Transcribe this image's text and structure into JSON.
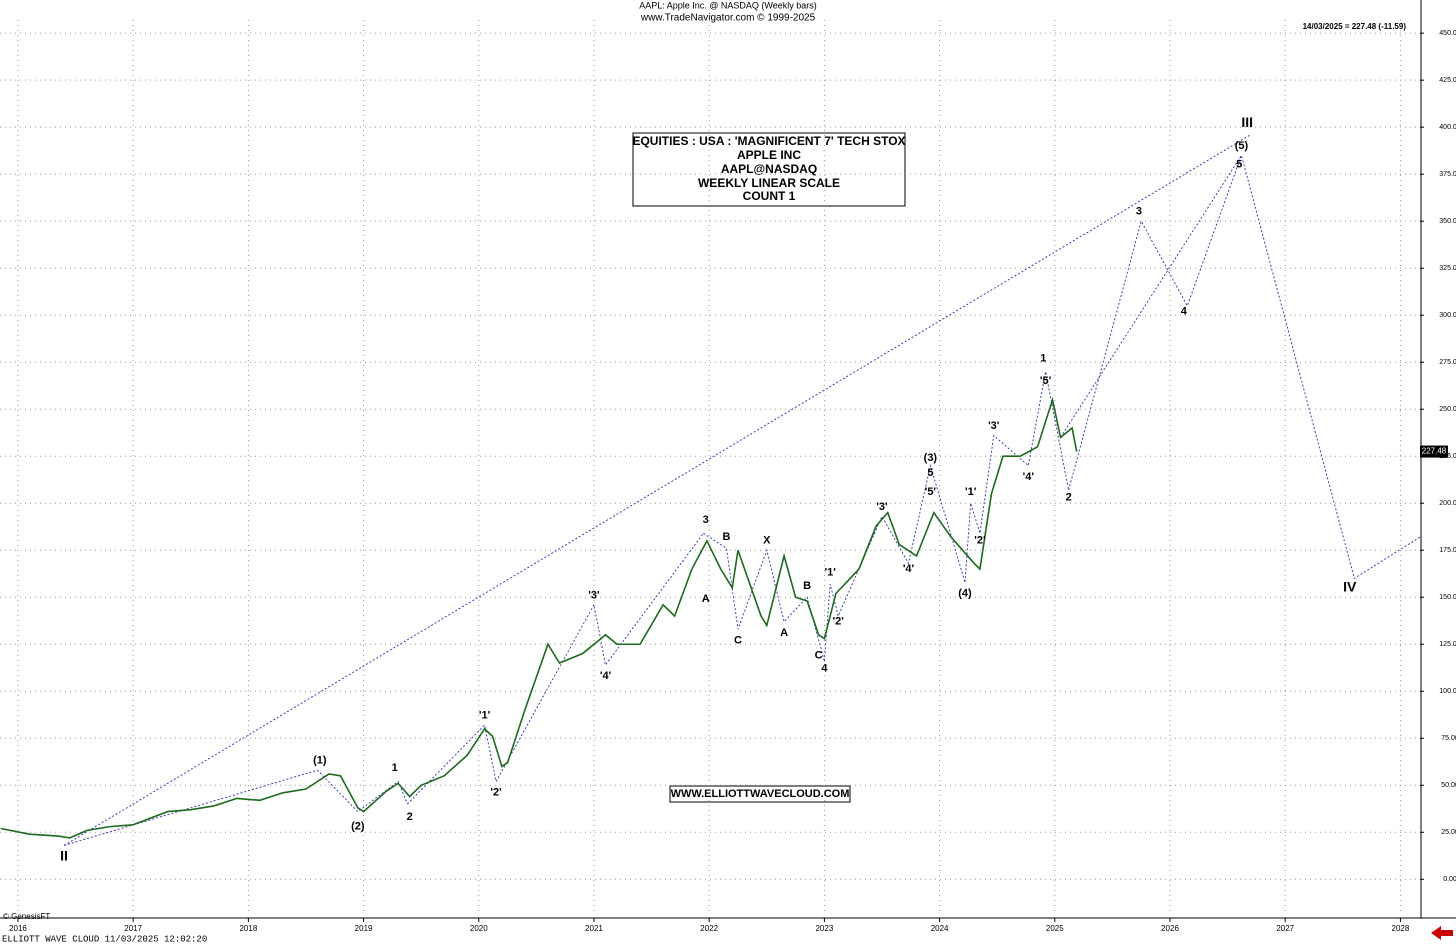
{
  "chart_data": {
    "type": "line",
    "title": "AAPL:  Apple Inc. @ NASDAQ  (Weekly bars)",
    "subtitle": "www.TradeNavigator.com © 1999-2025",
    "last_quote": "14/03/2025 = 227.48 (-11.59)",
    "last_price": 227.48,
    "info_box": [
      "EQUITIES : USA : 'MAGNIFICENT 7' TECH STOX",
      "APPLE INC",
      "AAPL@NASDAQ",
      "WEEKLY LINEAR SCALE",
      "COUNT 1"
    ],
    "website": "WWW.ELLIOTTWAVECLOUD.COM",
    "copyright": "© GenesisFT",
    "footer": "ELLIOTT WAVE CLOUD   11/03/2025 12:02:20",
    "xlim": [
      2015.844,
      2028.17
    ],
    "xticks": [
      2016,
      2017,
      2018,
      2019,
      2020,
      2021,
      2022,
      2023,
      2024,
      2025,
      2026,
      2027,
      2028
    ],
    "ylim": [
      -19,
      457
    ],
    "yticks": [
      {
        "value": 0,
        "label": "0.00"
      },
      {
        "value": 25,
        "label": "25.00"
      },
      {
        "value": 50,
        "label": "50.00"
      },
      {
        "value": 75,
        "label": "75.00"
      },
      {
        "value": 100,
        "label": "100.00"
      },
      {
        "value": 125,
        "label": "125.00"
      },
      {
        "value": 150,
        "label": "150.00"
      },
      {
        "value": 175,
        "label": "175.00"
      },
      {
        "value": 200,
        "label": "200.00"
      },
      {
        "value": 225,
        "label": "225.00"
      },
      {
        "value": 250,
        "label": "250.00"
      },
      {
        "value": 275,
        "label": "275.00"
      },
      {
        "value": 300,
        "label": "300.00"
      },
      {
        "value": 325,
        "label": "325.00"
      },
      {
        "value": 350,
        "label": "350.00"
      },
      {
        "value": 375,
        "label": "375.00"
      },
      {
        "value": 400,
        "label": "400.00"
      },
      {
        "value": 425,
        "label": "425.00"
      },
      {
        "value": 450,
        "label": "450.00"
      }
    ],
    "grid": true,
    "series": [
      {
        "name": "AAPL",
        "color": "#1a6b1a",
        "x": [
          2015.85,
          2016.1,
          2016.35,
          2016.45,
          2016.6,
          2016.8,
          2017.0,
          2017.3,
          2017.5,
          2017.7,
          2017.9,
          2018.1,
          2018.3,
          2018.5,
          2018.7,
          2018.8,
          2018.95,
          2019.0,
          2019.2,
          2019.3,
          2019.4,
          2019.5,
          2019.7,
          2019.9,
          2020.05,
          2020.12,
          2020.2,
          2020.25,
          2020.4,
          2020.6,
          2020.7,
          2020.9,
          2021.1,
          2021.2,
          2021.4,
          2021.6,
          2021.7,
          2021.85,
          2021.98,
          2022.1,
          2022.2,
          2022.25,
          2022.45,
          2022.5,
          2022.65,
          2022.75,
          2022.85,
          2022.95,
          2023.0,
          2023.1,
          2023.3,
          2023.45,
          2023.55,
          2023.65,
          2023.8,
          2023.95,
          2024.1,
          2024.3,
          2024.35,
          2024.45,
          2024.55,
          2024.7,
          2024.85,
          2024.98,
          2025.05,
          2025.15,
          2025.19
        ],
        "values": [
          27,
          24,
          23,
          22,
          26,
          28,
          29,
          36,
          37,
          39,
          43,
          42,
          46,
          48,
          56,
          55,
          38,
          36,
          47,
          51,
          44,
          50,
          55,
          66,
          80,
          76,
          60,
          62,
          90,
          125,
          115,
          120,
          130,
          125,
          125,
          146,
          140,
          165,
          180,
          165,
          155,
          175,
          140,
          135,
          172,
          150,
          148,
          130,
          128,
          152,
          165,
          188,
          195,
          178,
          172,
          195,
          182,
          168,
          165,
          205,
          225,
          225,
          230,
          255,
          235,
          240,
          227.48
        ]
      }
    ],
    "wave_lines": [
      {
        "x": [
          2016.4,
          2026.7
        ],
        "y": [
          18,
          396
        ]
      },
      {
        "x": [
          2016.4,
          2018.6,
          2018.95,
          2019.3,
          2019.38
        ],
        "y": [
          18,
          58,
          36,
          52,
          40
        ]
      },
      {
        "x": [
          2019.38,
          2020.05,
          2020.15,
          2021.0,
          2021.1,
          2021.95
        ],
        "y": [
          40,
          82,
          52,
          146,
          114,
          184
        ]
      },
      {
        "x": [
          2021.95,
          2022.15,
          2022.25,
          2022.5,
          2022.65,
          2022.85,
          2023.0
        ],
        "y": [
          184,
          176,
          133,
          175,
          137,
          150,
          116
        ]
      },
      {
        "x": [
          2023.0,
          2023.05,
          2023.12,
          2023.5,
          2023.73,
          2023.92,
          2024.22
        ],
        "y": [
          116,
          157,
          140,
          193,
          168,
          220,
          158
        ]
      },
      {
        "x": [
          2024.22,
          2024.27,
          2024.35,
          2024.47,
          2024.77,
          2024.92,
          2025.12
        ],
        "y": [
          158,
          200,
          184,
          236,
          220,
          270,
          207
        ]
      },
      {
        "x": [
          2025.12,
          2025.75,
          2026.15,
          2026.62,
          2027.6,
          2028.17
        ],
        "y": [
          207,
          350,
          305,
          385,
          160,
          182
        ]
      },
      {
        "x": [
          2025.05,
          2026.62
        ],
        "y": [
          235,
          385
        ]
      }
    ],
    "annotations": [
      {
        "text": "II",
        "x": 2016.4,
        "y": 12,
        "color": "#1a1aa6"
      },
      {
        "text": "(1)",
        "x": 2018.62,
        "y": 63,
        "color": "#1a1aa6"
      },
      {
        "text": "(2)",
        "x": 2018.95,
        "y": 28,
        "color": "#1a1aa6"
      },
      {
        "text": "1",
        "x": 2019.27,
        "y": 59,
        "color": "#1a1aa6"
      },
      {
        "text": "2",
        "x": 2019.4,
        "y": 33,
        "color": "#1a1aa6"
      },
      {
        "text": "'1'",
        "x": 2020.05,
        "y": 87,
        "color": "#1a1aa6"
      },
      {
        "text": "'2'",
        "x": 2020.15,
        "y": 46,
        "color": "#1a1aa6"
      },
      {
        "text": "'3'",
        "x": 2021.0,
        "y": 151,
        "color": "#1a1aa6"
      },
      {
        "text": "'4'",
        "x": 2021.1,
        "y": 108,
        "color": "#1a1aa6"
      },
      {
        "text": "3",
        "x": 2021.97,
        "y": 191,
        "color": "#1a1aa6"
      },
      {
        "text": "A",
        "x": 2021.97,
        "y": 149,
        "color": "#cc0000"
      },
      {
        "text": "B",
        "x": 2022.15,
        "y": 182,
        "color": "#cc0000"
      },
      {
        "text": "C",
        "x": 2022.25,
        "y": 127,
        "color": "#cc0000"
      },
      {
        "text": "X",
        "x": 2022.5,
        "y": 180,
        "color": "#cc0000"
      },
      {
        "text": "A",
        "x": 2022.65,
        "y": 131,
        "color": "#cc0000"
      },
      {
        "text": "B",
        "x": 2022.85,
        "y": 156,
        "color": "#cc0000"
      },
      {
        "text": "C",
        "x": 2022.95,
        "y": 119,
        "color": "#cc0000"
      },
      {
        "text": "4",
        "x": 2023.0,
        "y": 112,
        "color": "#1a1aa6"
      },
      {
        "text": "'1'",
        "x": 2023.05,
        "y": 163,
        "color": "#1a1aa6"
      },
      {
        "text": "'2'",
        "x": 2023.12,
        "y": 137,
        "color": "#1a1aa6"
      },
      {
        "text": "'3'",
        "x": 2023.5,
        "y": 198,
        "color": "#1a1aa6"
      },
      {
        "text": "'4'",
        "x": 2023.73,
        "y": 165,
        "color": "#1a1aa6"
      },
      {
        "text": "(3)",
        "x": 2023.92,
        "y": 224,
        "color": "#1a1aa6"
      },
      {
        "text": "5",
        "x": 2023.92,
        "y": 216,
        "color": "#1a1aa6"
      },
      {
        "text": "'5'",
        "x": 2023.92,
        "y": 206,
        "color": "#1a1aa6"
      },
      {
        "text": "(4)",
        "x": 2024.22,
        "y": 152,
        "color": "#1a1aa6"
      },
      {
        "text": "'1'",
        "x": 2024.27,
        "y": 206,
        "color": "#1a1aa6"
      },
      {
        "text": "'2'",
        "x": 2024.35,
        "y": 180,
        "color": "#1a1aa6"
      },
      {
        "text": "'3'",
        "x": 2024.47,
        "y": 241,
        "color": "#1a1aa6"
      },
      {
        "text": "'4'",
        "x": 2024.77,
        "y": 214,
        "color": "#1a1aa6"
      },
      {
        "text": "1",
        "x": 2024.9,
        "y": 277,
        "color": "#1a1aa6"
      },
      {
        "text": "'5'",
        "x": 2024.92,
        "y": 265,
        "color": "#1a1aa6"
      },
      {
        "text": "2",
        "x": 2025.12,
        "y": 203,
        "color": "#1a1aa6"
      },
      {
        "text": "3",
        "x": 2025.73,
        "y": 355,
        "color": "#1a1aa6"
      },
      {
        "text": "4",
        "x": 2026.12,
        "y": 302,
        "color": "#1a1aa6"
      },
      {
        "text": "5",
        "x": 2026.6,
        "y": 380,
        "color": "#1a1aa6"
      },
      {
        "text": "(5)",
        "x": 2026.62,
        "y": 390,
        "color": "#1a1aa6"
      },
      {
        "text": "III",
        "x": 2026.67,
        "y": 402,
        "color": "#1a1aa6"
      },
      {
        "text": "IV",
        "x": 2027.56,
        "y": 155,
        "color": "#1a1aa6"
      }
    ]
  }
}
